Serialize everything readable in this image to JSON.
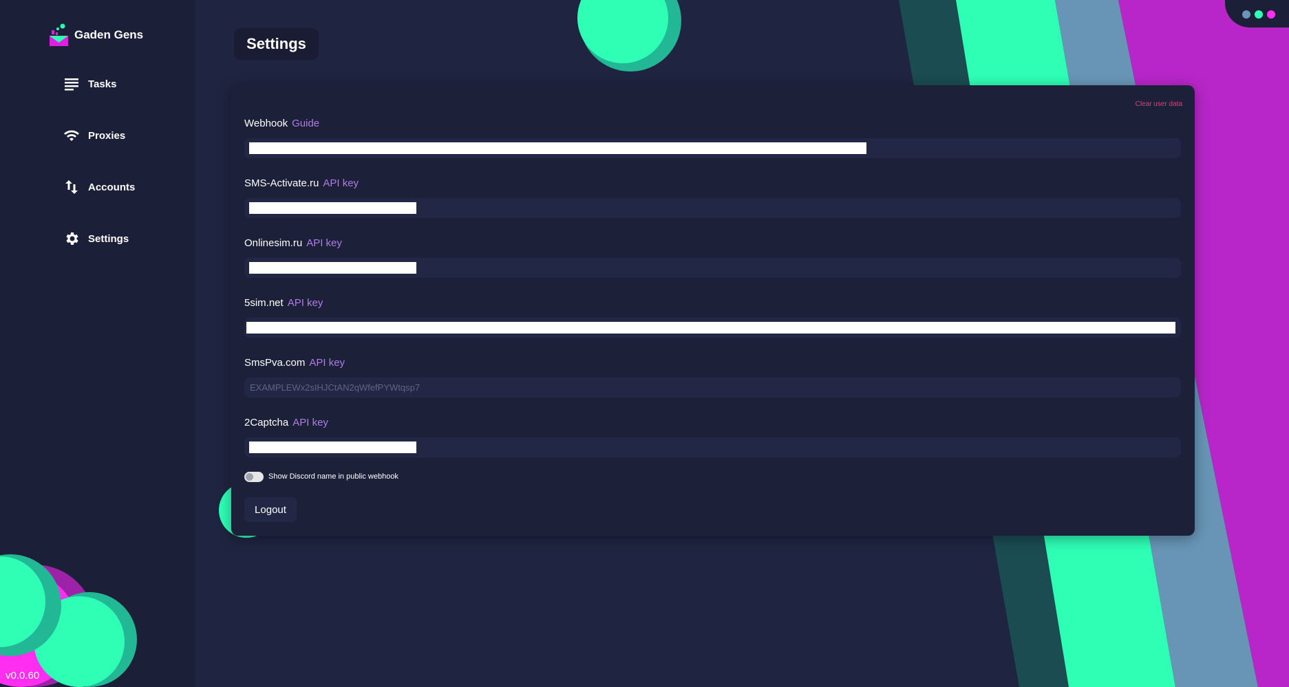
{
  "app": {
    "name": "Gaden Gens",
    "version": "v0.0.60"
  },
  "sidebar": {
    "items": [
      {
        "label": "Tasks",
        "icon": "list-icon"
      },
      {
        "label": "Proxies",
        "icon": "wifi-icon"
      },
      {
        "label": "Accounts",
        "icon": "arrows-up-down-icon"
      },
      {
        "label": "Settings",
        "icon": "gear-icon"
      }
    ]
  },
  "page": {
    "title": "Settings"
  },
  "settings": {
    "clear_label": "Clear user data",
    "fields": [
      {
        "name": "Webhook",
        "link": "Guide",
        "value": "",
        "redacted": true
      },
      {
        "name": "SMS-Activate.ru",
        "link": "API key",
        "value": "",
        "redacted": true
      },
      {
        "name": "Onlinesim.ru",
        "link": "API key",
        "value": "",
        "redacted": true
      },
      {
        "name": "5sim.net",
        "link": "API key",
        "value": "",
        "redacted": true
      },
      {
        "name": "SmsPva.com",
        "link": "API key",
        "placeholder": "EXAMPLEWx2sIHJCtAN2qWfefPYWtqsp7"
      },
      {
        "name": "2Captcha",
        "link": "API key",
        "value": "",
        "redacted": true
      }
    ],
    "toggle_label": "Show Discord name in public webhook",
    "toggle_on": false,
    "logout_label": "Logout"
  },
  "colors": {
    "accent_green": "#2effb5",
    "accent_magenta": "#ff2ef0",
    "link": "#b07de8",
    "danger": "#e0407a",
    "window_dots": [
      "#6a94b8",
      "#2effb5",
      "#ff2ef0"
    ]
  }
}
